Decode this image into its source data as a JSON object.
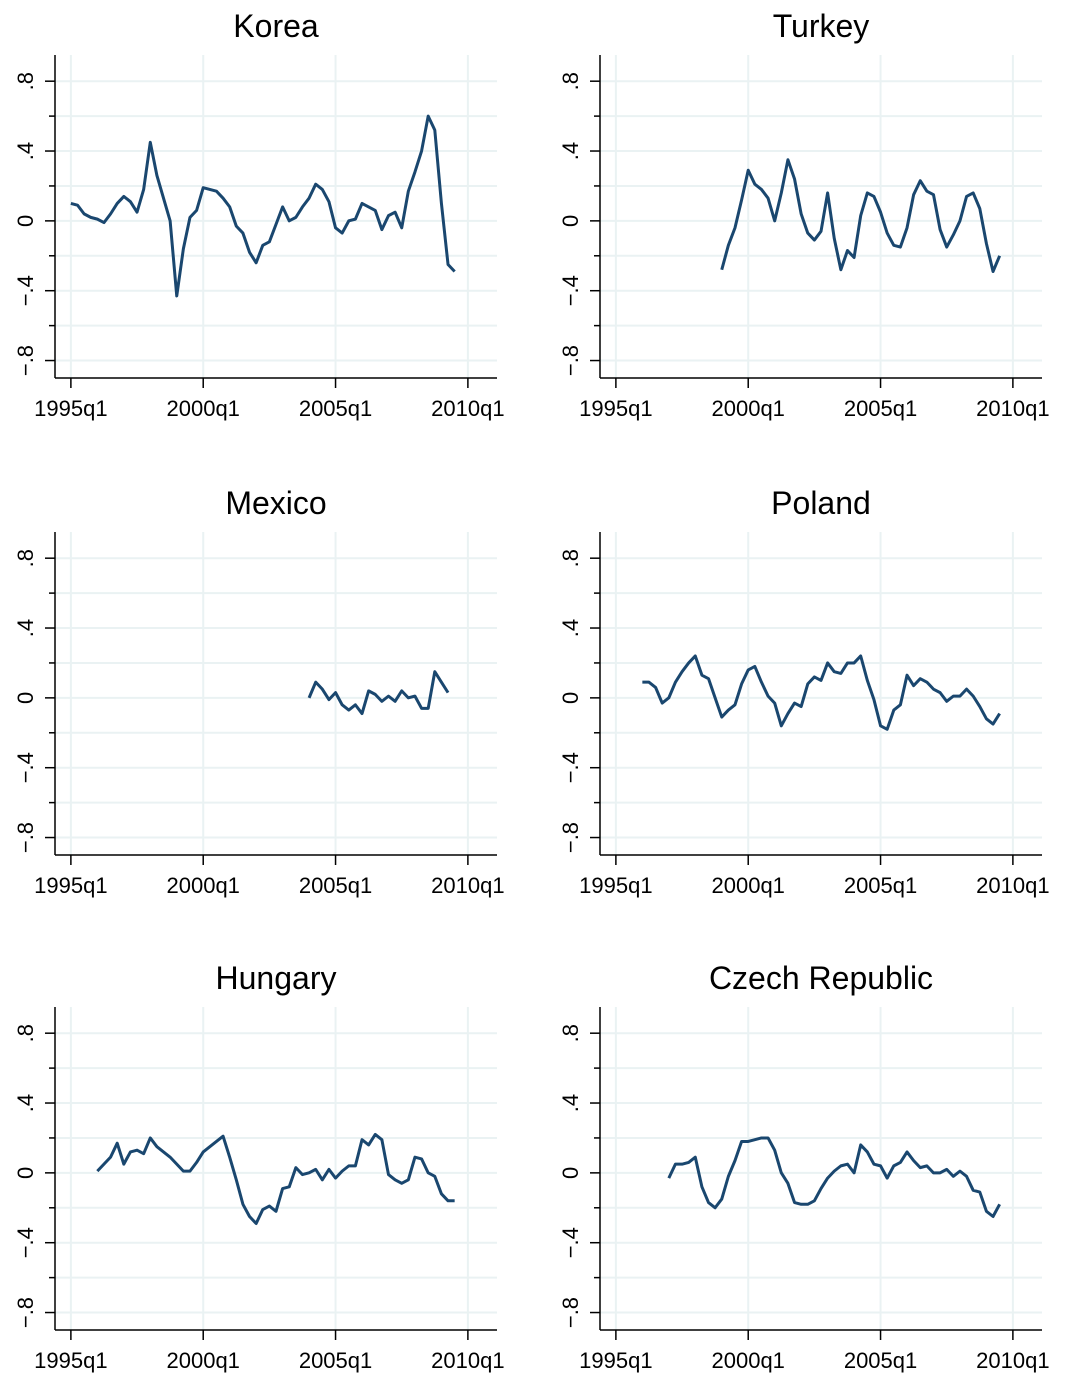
{
  "chart_data": [
    {
      "type": "line",
      "title": "Korea",
      "color": "#1a476f",
      "grid": true,
      "x": [
        1995,
        1995.25,
        1995.5,
        1995.75,
        1996,
        1996.25,
        1996.5,
        1996.75,
        1997,
        1997.25,
        1997.5,
        1997.75,
        1998,
        1998.25,
        1998.5,
        1998.75,
        1999,
        1999.25,
        1999.5,
        1999.75,
        2000,
        2000.25,
        2000.5,
        2000.75,
        2001,
        2001.25,
        2001.5,
        2001.75,
        2002,
        2002.25,
        2002.5,
        2002.75,
        2003,
        2003.25,
        2003.5,
        2003.75,
        2004,
        2004.25,
        2004.5,
        2004.75,
        2005,
        2005.25,
        2005.5,
        2005.75,
        2006,
        2006.25,
        2006.5,
        2006.75,
        2007,
        2007.25,
        2007.5,
        2007.75,
        2008,
        2008.25,
        2008.5,
        2008.75,
        2009,
        2009.25,
        2009.5
      ],
      "values": [
        0.1,
        0.09,
        0.04,
        0.02,
        0.01,
        -0.01,
        0.04,
        0.1,
        0.14,
        0.11,
        0.05,
        0.18,
        0.45,
        0.26,
        0.13,
        0.0,
        -0.43,
        -0.16,
        0.02,
        0.06,
        0.19,
        0.18,
        0.17,
        0.13,
        0.08,
        -0.03,
        -0.07,
        -0.18,
        -0.24,
        -0.14,
        -0.12,
        -0.02,
        0.08,
        0.0,
        0.02,
        0.08,
        0.13,
        0.21,
        0.18,
        0.11,
        -0.04,
        -0.07,
        0.0,
        0.01,
        0.1,
        0.08,
        0.06,
        -0.05,
        0.03,
        0.05,
        -0.04,
        0.17,
        0.28,
        0.4,
        0.6,
        0.52,
        0.1,
        -0.25,
        -0.29
      ],
      "xlim": [
        1994.4,
        2011.1
      ],
      "xticks": [
        {
          "value": 1995,
          "label": "1995q1"
        },
        {
          "value": 2000,
          "label": "2000q1"
        },
        {
          "value": 2005,
          "label": "2005q1"
        },
        {
          "value": 2010,
          "label": "2010q1"
        }
      ],
      "ylim": [
        -0.9,
        0.95
      ],
      "yticks": [
        {
          "value": -0.8,
          "label": "−.8"
        },
        {
          "value": -0.4,
          "label": "−.4"
        },
        0,
        {
          "value": 0.4,
          "label": ".4"
        },
        {
          "value": 0.8,
          "label": ".8"
        }
      ],
      "yminorticks": [
        -0.6,
        -0.2,
        0.2,
        0.6
      ]
    },
    {
      "type": "line",
      "title": "Turkey",
      "color": "#1a476f",
      "grid": true,
      "x": [
        1999,
        1999.25,
        1999.5,
        1999.75,
        2000,
        2000.25,
        2000.5,
        2000.75,
        2001,
        2001.25,
        2001.5,
        2001.75,
        2002,
        2002.25,
        2002.5,
        2002.75,
        2003,
        2003.25,
        2003.5,
        2003.75,
        2004,
        2004.25,
        2004.5,
        2004.75,
        2005,
        2005.25,
        2005.5,
        2005.75,
        2006,
        2006.25,
        2006.5,
        2006.75,
        2007,
        2007.25,
        2007.5,
        2007.75,
        2008,
        2008.25,
        2008.5,
        2008.75,
        2009,
        2009.25,
        2009.5
      ],
      "values": [
        -0.28,
        -0.14,
        -0.04,
        0.12,
        0.29,
        0.21,
        0.18,
        0.13,
        0.0,
        0.16,
        0.35,
        0.24,
        0.04,
        -0.07,
        -0.11,
        -0.06,
        0.16,
        -0.1,
        -0.28,
        -0.17,
        -0.21,
        0.03,
        0.16,
        0.14,
        0.05,
        -0.07,
        -0.14,
        -0.15,
        -0.04,
        0.15,
        0.23,
        0.17,
        0.15,
        -0.05,
        -0.15,
        -0.08,
        0.0,
        0.14,
        0.16,
        0.07,
        -0.13,
        -0.29,
        -0.2
      ],
      "xlim": [
        1994.4,
        2011.1
      ],
      "xticks": [
        {
          "value": 1995,
          "label": "1995q1"
        },
        {
          "value": 2000,
          "label": "2000q1"
        },
        {
          "value": 2005,
          "label": "2005q1"
        },
        {
          "value": 2010,
          "label": "2010q1"
        }
      ],
      "ylim": [
        -0.9,
        0.95
      ],
      "yticks": [
        {
          "value": -0.8,
          "label": "−.8"
        },
        {
          "value": -0.4,
          "label": "−.4"
        },
        0,
        {
          "value": 0.4,
          "label": ".4"
        },
        {
          "value": 0.8,
          "label": ".8"
        }
      ],
      "yminorticks": [
        -0.6,
        -0.2,
        0.2,
        0.6
      ]
    },
    {
      "type": "line",
      "title": "Mexico",
      "color": "#1a476f",
      "grid": true,
      "x": [
        2004,
        2004.25,
        2004.5,
        2004.75,
        2005,
        2005.25,
        2005.5,
        2005.75,
        2006,
        2006.25,
        2006.5,
        2006.75,
        2007,
        2007.25,
        2007.5,
        2007.75,
        2008,
        2008.25,
        2008.5,
        2008.75,
        2009,
        2009.25
      ],
      "values": [
        0.0,
        0.09,
        0.05,
        -0.01,
        0.03,
        -0.04,
        -0.07,
        -0.04,
        -0.09,
        0.04,
        0.02,
        -0.02,
        0.01,
        -0.02,
        0.04,
        0.0,
        0.01,
        -0.06,
        -0.06,
        0.15,
        0.09,
        0.03
      ],
      "xlim": [
        1994.4,
        2011.1
      ],
      "xticks": [
        {
          "value": 1995,
          "label": "1995q1"
        },
        {
          "value": 2000,
          "label": "2000q1"
        },
        {
          "value": 2005,
          "label": "2005q1"
        },
        {
          "value": 2010,
          "label": "2010q1"
        }
      ],
      "ylim": [
        -0.9,
        0.95
      ],
      "yticks": [
        {
          "value": -0.8,
          "label": "−.8"
        },
        {
          "value": -0.4,
          "label": "−.4"
        },
        0,
        {
          "value": 0.4,
          "label": ".4"
        },
        {
          "value": 0.8,
          "label": ".8"
        }
      ],
      "yminorticks": [
        -0.6,
        -0.2,
        0.2,
        0.6
      ]
    },
    {
      "type": "line",
      "title": "Poland",
      "color": "#1a476f",
      "grid": true,
      "x": [
        1996,
        1996.25,
        1996.5,
        1996.75,
        1997,
        1997.25,
        1997.5,
        1997.75,
        1998,
        1998.25,
        1998.5,
        1998.75,
        1999,
        1999.25,
        1999.5,
        1999.75,
        2000,
        2000.25,
        2000.5,
        2000.75,
        2001,
        2001.25,
        2001.5,
        2001.75,
        2002,
        2002.25,
        2002.5,
        2002.75,
        2003,
        2003.25,
        2003.5,
        2003.75,
        2004,
        2004.25,
        2004.5,
        2004.75,
        2005,
        2005.25,
        2005.5,
        2005.75,
        2006,
        2006.25,
        2006.5,
        2006.75,
        2007,
        2007.25,
        2007.5,
        2007.75,
        2008,
        2008.25,
        2008.5,
        2008.75,
        2009,
        2009.25,
        2009.5
      ],
      "values": [
        0.09,
        0.09,
        0.06,
        -0.03,
        0.0,
        0.09,
        0.15,
        0.2,
        0.24,
        0.13,
        0.11,
        0.0,
        -0.11,
        -0.07,
        -0.04,
        0.08,
        0.16,
        0.18,
        0.09,
        0.01,
        -0.03,
        -0.16,
        -0.09,
        -0.03,
        -0.05,
        0.08,
        0.12,
        0.1,
        0.2,
        0.15,
        0.14,
        0.2,
        0.2,
        0.24,
        0.1,
        -0.01,
        -0.16,
        -0.18,
        -0.07,
        -0.04,
        0.13,
        0.07,
        0.11,
        0.09,
        0.05,
        0.03,
        -0.02,
        0.01,
        0.01,
        0.05,
        0.01,
        -0.05,
        -0.12,
        -0.15,
        -0.09
      ],
      "xlim": [
        1994.4,
        2011.1
      ],
      "xticks": [
        {
          "value": 1995,
          "label": "1995q1"
        },
        {
          "value": 2000,
          "label": "2000q1"
        },
        {
          "value": 2005,
          "label": "2005q1"
        },
        {
          "value": 2010,
          "label": "2010q1"
        }
      ],
      "ylim": [
        -0.9,
        0.95
      ],
      "yticks": [
        {
          "value": -0.8,
          "label": "−.8"
        },
        {
          "value": -0.4,
          "label": "−.4"
        },
        0,
        {
          "value": 0.4,
          "label": ".4"
        },
        {
          "value": 0.8,
          "label": ".8"
        }
      ],
      "yminorticks": [
        -0.6,
        -0.2,
        0.2,
        0.6
      ]
    },
    {
      "type": "line",
      "title": "Hungary",
      "color": "#1a476f",
      "grid": true,
      "x": [
        1996,
        1996.25,
        1996.5,
        1996.75,
        1997,
        1997.25,
        1997.5,
        1997.75,
        1998,
        1998.25,
        1998.5,
        1998.75,
        1999,
        1999.25,
        1999.5,
        1999.75,
        2000,
        2000.25,
        2000.5,
        2000.75,
        2001,
        2001.25,
        2001.5,
        2001.75,
        2002,
        2002.25,
        2002.5,
        2002.75,
        2003,
        2003.25,
        2003.5,
        2003.75,
        2004,
        2004.25,
        2004.5,
        2004.75,
        2005,
        2005.25,
        2005.5,
        2005.75,
        2006,
        2006.25,
        2006.5,
        2006.75,
        2007,
        2007.25,
        2007.5,
        2007.75,
        2008,
        2008.25,
        2008.5,
        2008.75,
        2009,
        2009.25,
        2009.5
      ],
      "values": [
        0.01,
        0.05,
        0.09,
        0.17,
        0.05,
        0.12,
        0.13,
        0.11,
        0.2,
        0.15,
        0.12,
        0.09,
        0.05,
        0.01,
        0.01,
        0.06,
        0.12,
        0.15,
        0.18,
        0.21,
        0.09,
        -0.04,
        -0.18,
        -0.25,
        -0.29,
        -0.21,
        -0.19,
        -0.22,
        -0.09,
        -0.08,
        0.03,
        -0.01,
        0.0,
        0.02,
        -0.04,
        0.02,
        -0.03,
        0.01,
        0.04,
        0.04,
        0.19,
        0.16,
        0.22,
        0.19,
        -0.01,
        -0.04,
        -0.06,
        -0.04,
        0.09,
        0.08,
        0.0,
        -0.02,
        -0.12,
        -0.16,
        -0.16
      ],
      "xlim": [
        1994.4,
        2011.1
      ],
      "xticks": [
        {
          "value": 1995,
          "label": "1995q1"
        },
        {
          "value": 2000,
          "label": "2000q1"
        },
        {
          "value": 2005,
          "label": "2005q1"
        },
        {
          "value": 2010,
          "label": "2010q1"
        }
      ],
      "ylim": [
        -0.9,
        0.95
      ],
      "yticks": [
        {
          "value": -0.8,
          "label": "−.8"
        },
        {
          "value": -0.4,
          "label": "−.4"
        },
        0,
        {
          "value": 0.4,
          "label": ".4"
        },
        {
          "value": 0.8,
          "label": ".8"
        }
      ],
      "yminorticks": [
        -0.6,
        -0.2,
        0.2,
        0.6
      ]
    },
    {
      "type": "line",
      "title": "Czech Republic",
      "color": "#1a476f",
      "grid": true,
      "x": [
        1997,
        1997.25,
        1997.5,
        1997.75,
        1998,
        1998.25,
        1998.5,
        1998.75,
        1999,
        1999.25,
        1999.5,
        1999.75,
        2000,
        2000.25,
        2000.5,
        2000.75,
        2001,
        2001.25,
        2001.5,
        2001.75,
        2002,
        2002.25,
        2002.5,
        2002.75,
        2003,
        2003.25,
        2003.5,
        2003.75,
        2004,
        2004.25,
        2004.5,
        2004.75,
        2005,
        2005.25,
        2005.5,
        2005.75,
        2006,
        2006.25,
        2006.5,
        2006.75,
        2007,
        2007.25,
        2007.5,
        2007.75,
        2008,
        2008.25,
        2008.5,
        2008.75,
        2009,
        2009.25,
        2009.5
      ],
      "values": [
        -0.03,
        0.05,
        0.05,
        0.06,
        0.09,
        -0.08,
        -0.17,
        -0.2,
        -0.15,
        -0.02,
        0.07,
        0.18,
        0.18,
        0.19,
        0.2,
        0.2,
        0.13,
        0.0,
        -0.06,
        -0.17,
        -0.18,
        -0.18,
        -0.16,
        -0.09,
        -0.03,
        0.01,
        0.04,
        0.05,
        0.0,
        0.16,
        0.12,
        0.05,
        0.04,
        -0.03,
        0.04,
        0.06,
        0.12,
        0.07,
        0.03,
        0.04,
        0.0,
        0.0,
        0.02,
        -0.02,
        0.01,
        -0.02,
        -0.1,
        -0.11,
        -0.22,
        -0.25,
        -0.18
      ],
      "xlim": [
        1994.4,
        2011.1
      ],
      "xticks": [
        {
          "value": 1995,
          "label": "1995q1"
        },
        {
          "value": 2000,
          "label": "2000q1"
        },
        {
          "value": 2005,
          "label": "2005q1"
        },
        {
          "value": 2010,
          "label": "2010q1"
        }
      ],
      "ylim": [
        -0.9,
        0.95
      ],
      "yticks": [
        {
          "value": -0.8,
          "label": "−.8"
        },
        {
          "value": -0.4,
          "label": "−.4"
        },
        0,
        {
          "value": 0.4,
          "label": ".4"
        },
        {
          "value": 0.8,
          "label": ".8"
        }
      ],
      "yminorticks": [
        -0.6,
        -0.2,
        0.2,
        0.6
      ]
    }
  ]
}
